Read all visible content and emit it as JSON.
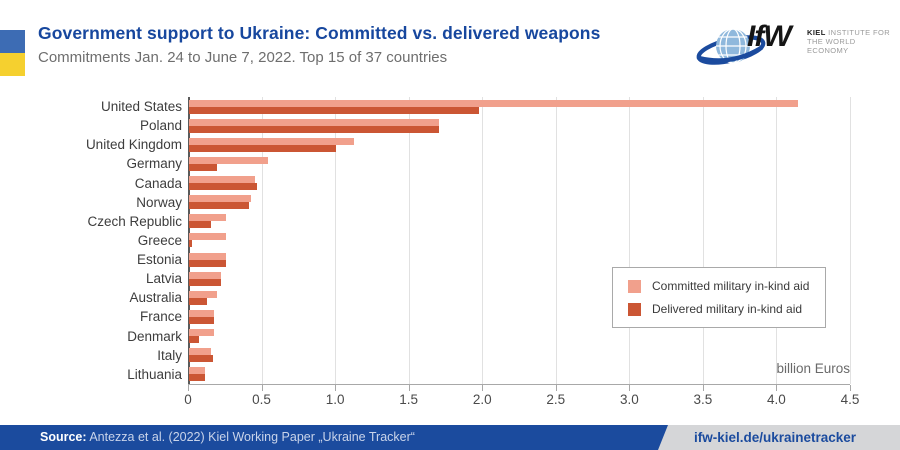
{
  "header": {
    "title": "Government support to Ukraine: Committed vs. delivered weapons",
    "subtitle": "Commitments Jan. 24 to June 7, 2022. Top 15 of 37 countries"
  },
  "logo": {
    "ifw": "IfW",
    "kiel": "KIEL",
    "line1_rest": " INSTITUTE FOR",
    "line2": "THE WORLD ECONOMY"
  },
  "chart_data": {
    "type": "bar",
    "orientation": "horizontal",
    "title": "Government support to Ukraine: Committed vs. delivered weapons",
    "unit_label": "billion Euros",
    "xlim": [
      0,
      4.5
    ],
    "x_ticks": [
      "0",
      "0.5",
      "1.0",
      "1.5",
      "2.0",
      "2.5",
      "3.0",
      "3.5",
      "4.0",
      "4.5"
    ],
    "grid": true,
    "legend_position": "middle-right",
    "categories": [
      "United States",
      "Poland",
      "United Kingdom",
      "Germany",
      "Canada",
      "Norway",
      "Czech Republic",
      "Greece",
      "Estonia",
      "Latvia",
      "Australia",
      "France",
      "Denmark",
      "Italy",
      "Lithuania"
    ],
    "series": [
      {
        "name": "Committed military in-kind aid",
        "color": "#F1A08C",
        "values": [
          4.14,
          1.7,
          1.12,
          0.54,
          0.45,
          0.42,
          0.25,
          0.25,
          0.25,
          0.22,
          0.19,
          0.17,
          0.17,
          0.15,
          0.11
        ]
      },
      {
        "name": "Delivered military in-kind aid",
        "color": "#CB5634",
        "values": [
          1.97,
          1.7,
          1.0,
          0.19,
          0.46,
          0.41,
          0.15,
          0.02,
          0.25,
          0.22,
          0.12,
          0.17,
          0.07,
          0.16,
          0.11
        ]
      }
    ]
  },
  "footer": {
    "source_label": "Source:",
    "source_text": " Antezza et al. (2022) Kiel Working Paper „Ukraine Tracker“",
    "url": "ifw-kiel.de/ukrainetracker"
  },
  "colors": {
    "accent_blue": "#1B4B9E",
    "committed": "#F1A08C",
    "delivered": "#CB5634",
    "flag_blue": "#3D6CB4",
    "flag_yellow": "#F5D02F"
  }
}
